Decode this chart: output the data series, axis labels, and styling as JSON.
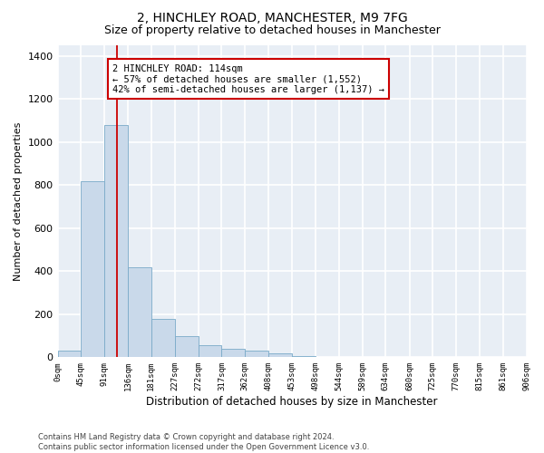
{
  "title_line1": "2, HINCHLEY ROAD, MANCHESTER, M9 7FG",
  "title_line2": "Size of property relative to detached houses in Manchester",
  "xlabel": "Distribution of detached houses by size in Manchester",
  "ylabel": "Number of detached properties",
  "bar_color": "#c9d9ea",
  "bar_edge_color": "#7aaac8",
  "background_color": "#e8eef5",
  "grid_color": "#ffffff",
  "annotation_line_color": "#cc0000",
  "annotation_box_color": "#cc0000",
  "annotation_text": "2 HINCHLEY ROAD: 114sqm\n← 57% of detached houses are smaller (1,552)\n42% of semi-detached houses are larger (1,137) →",
  "property_size": 114,
  "bin_edges": [
    0,
    45,
    91,
    136,
    181,
    227,
    272,
    317,
    362,
    408,
    453,
    498,
    544,
    589,
    634,
    680,
    725,
    770,
    815,
    861,
    906
  ],
  "bar_heights": [
    30,
    820,
    1080,
    420,
    180,
    100,
    55,
    40,
    30,
    20,
    5,
    2,
    0,
    0,
    0,
    0,
    0,
    0,
    0,
    0
  ],
  "ylim": [
    0,
    1450
  ],
  "yticks": [
    0,
    200,
    400,
    600,
    800,
    1000,
    1200,
    1400
  ],
  "footer_text": "Contains HM Land Registry data © Crown copyright and database right 2024.\nContains public sector information licensed under the Open Government Licence v3.0.",
  "annotation_fontsize": 7.5,
  "title_fontsize1": 10,
  "title_fontsize2": 9
}
